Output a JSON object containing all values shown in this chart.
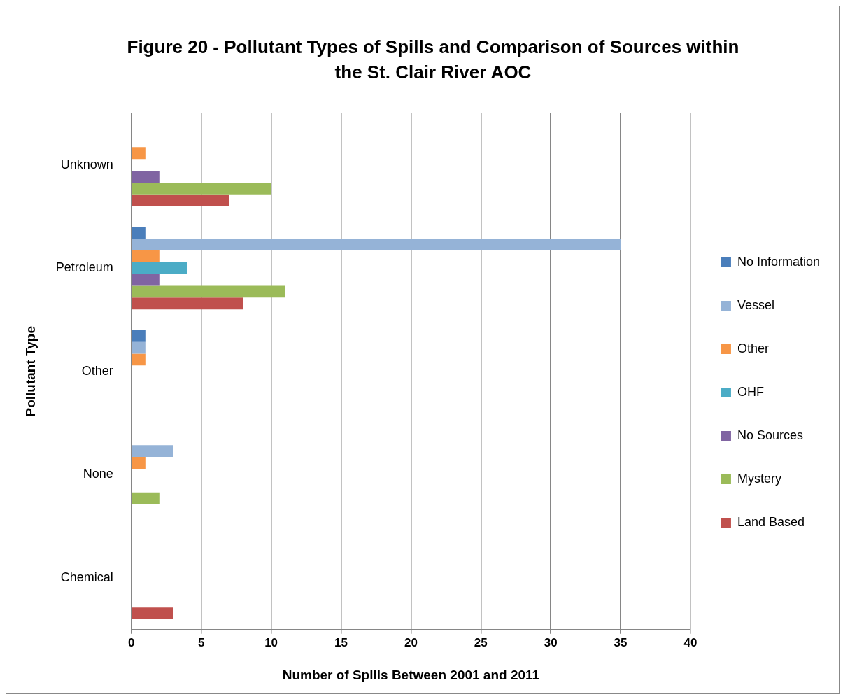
{
  "chart_data": {
    "type": "bar",
    "orientation": "horizontal",
    "title": "Figure 20 - Pollutant Types of Spills and Comparison of Sources within the St. Clair River AOC",
    "xlabel": "Number of Spills Between 2001 and 2011",
    "ylabel": "Pollutant Type",
    "categories": [
      "Unknown",
      "Petroleum",
      "Other",
      "None",
      "Chemical"
    ],
    "series": [
      {
        "name": "No Information",
        "color": "#4a7ebb",
        "values": [
          null,
          1,
          1,
          null,
          null
        ]
      },
      {
        "name": "Vessel",
        "color": "#95b3d7",
        "values": [
          null,
          35,
          1,
          3,
          null
        ]
      },
      {
        "name": "Other",
        "color": "#f79646",
        "values": [
          1,
          2,
          1,
          1,
          null
        ]
      },
      {
        "name": "OHF",
        "color": "#4bacc6",
        "values": [
          null,
          4,
          null,
          null,
          null
        ]
      },
      {
        "name": "No Sources",
        "color": "#8064a2",
        "values": [
          2,
          2,
          null,
          null,
          null
        ]
      },
      {
        "name": "Mystery",
        "color": "#9bbb59",
        "values": [
          10,
          11,
          null,
          2,
          null
        ]
      },
      {
        "name": "Land Based",
        "color": "#c0504d",
        "values": [
          7,
          8,
          null,
          null,
          3
        ]
      }
    ],
    "xlim": [
      0,
      40
    ],
    "xticks": [
      0,
      5,
      10,
      15,
      20,
      25,
      30,
      35,
      40
    ],
    "grid": "x",
    "legend": "right"
  }
}
